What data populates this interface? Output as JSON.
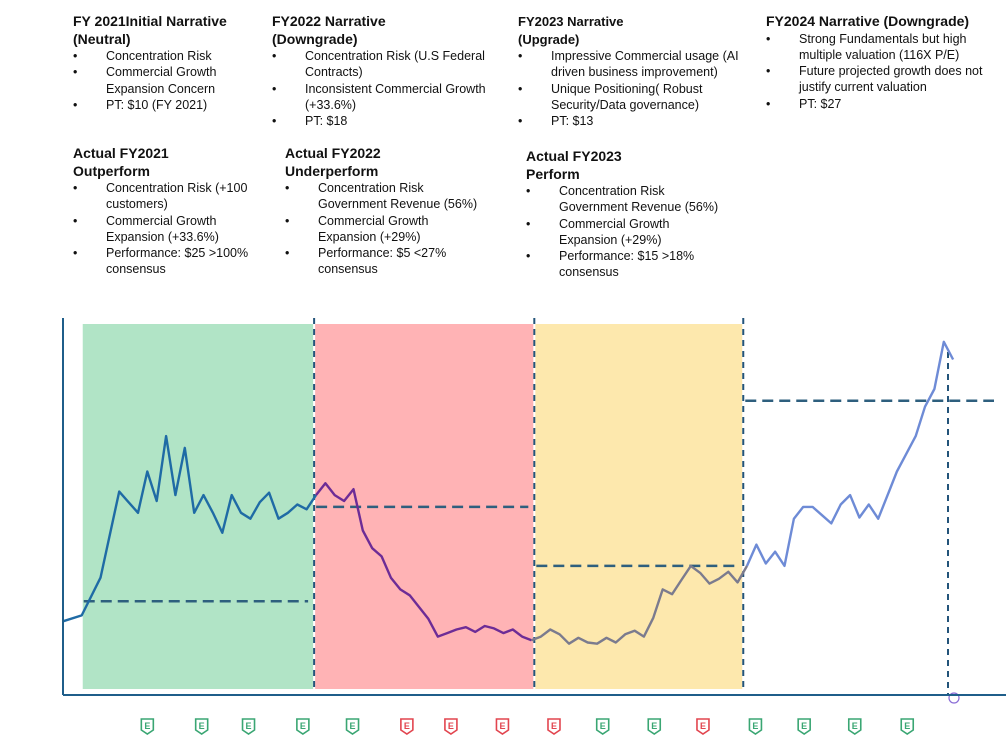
{
  "narratives": [
    {
      "heading": "FY 2021Initial Narrative (Neutral)",
      "bullets": [
        "Concentration Risk",
        "Commercial Growth Expansion Concern",
        "PT: $10 (FY 2021)"
      ]
    },
    {
      "heading": "FY2022 Narrative (Downgrade)",
      "bullets": [
        "Concentration Risk (U.S Federal Contracts)",
        "Inconsistent Commercial Growth (+33.6%)",
        "PT: $18"
      ]
    },
    {
      "heading": "FY2023 Narrative (Upgrade)",
      "bullets": [
        "Impressive Commercial usage (AI driven business improvement)",
        "Unique Positioning( Robust Security/Data governance)",
        "PT: $13"
      ]
    },
    {
      "heading": "FY2024 Narrative (Downgrade)",
      "bullets": [
        "Strong Fundamentals but high multiple valuation (116X P/E)",
        "Future projected growth does not justify current valuation",
        "PT: $27"
      ]
    }
  ],
  "actuals": [
    {
      "heading": "Actual FY2021 Outperform",
      "bullets": [
        "Concentration Risk (+100 customers)",
        "Commercial Growth Expansion (+33.6%)",
        "Performance: $25 >100% consensus"
      ]
    },
    {
      "heading": "Actual FY2022 Underperform",
      "bullets": [
        "Concentration Risk Government Revenue (56%)",
        "Commercial Growth Expansion (+29%)",
        "Performance: $5 <27% consensus"
      ]
    },
    {
      "heading": "Actual FY2023 Perform",
      "bullets": [
        "Concentration Risk Government Revenue (56%)",
        "Commercial Growth Expansion (+29%)",
        "Performance: $15 >18% consensus"
      ]
    }
  ],
  "chart_data": {
    "type": "line",
    "title": "",
    "xlabel": "",
    "ylabel": "",
    "ylim": [
      4,
      33
    ],
    "x_range": [
      0,
      100
    ],
    "grid": false,
    "legend": "none",
    "periods": [
      {
        "label": "FY2021",
        "rating": "Outperform",
        "x_start": 2,
        "x_end": 26.8,
        "color": "#b1e4c6"
      },
      {
        "label": "FY2022",
        "rating": "Underperform",
        "x_start": 26.8,
        "x_end": 50.3,
        "color": "#ffb3b5"
      },
      {
        "label": "FY2023",
        "rating": "Perform",
        "x_start": 50.3,
        "x_end": 72.6,
        "color": "#fde8ad"
      },
      {
        "label": "FY2024",
        "rating": "",
        "x_start": 72.6,
        "x_end": 100,
        "color": ""
      }
    ],
    "price_targets": [
      {
        "label": "PT FY2021",
        "value": 10,
        "x_start": 2,
        "x_end": 26.8
      },
      {
        "label": "PT FY2022",
        "value": 18,
        "x_start": 26.8,
        "x_end": 50.3
      },
      {
        "label": "PT FY2023",
        "value": 13,
        "x_start": 50.3,
        "x_end": 72.6
      },
      {
        "label": "PT FY2024",
        "value": 27,
        "x_start": 72.6,
        "x_end": 100
      }
    ],
    "series": [
      {
        "name": "",
        "color": "#1f6ba5",
        "x": [
          0,
          2,
          4,
          6,
          8,
          9,
          10,
          11,
          12,
          13,
          14,
          15,
          16,
          17,
          18,
          19,
          20,
          21,
          22,
          23,
          24,
          25,
          26,
          27
        ],
        "y": [
          8.3,
          8.8,
          12,
          19.3,
          17.5,
          21,
          18.5,
          24,
          19,
          23,
          17.5,
          19,
          17.5,
          15.8,
          19,
          17.5,
          17,
          18.4,
          19.2,
          17,
          17.5,
          18.2,
          17.8,
          19
        ]
      },
      {
        "name": "",
        "color": "#6d2c96",
        "x": [
          27,
          28,
          29,
          30,
          31,
          32,
          33,
          34,
          35,
          36,
          37,
          38,
          39,
          40,
          41,
          42,
          43,
          44,
          45,
          46,
          47,
          48,
          49,
          50
        ],
        "y": [
          19,
          20,
          19,
          18.5,
          19.5,
          16,
          14.5,
          13.8,
          12,
          11,
          10.5,
          9.5,
          8.5,
          7,
          7.3,
          7.6,
          7.8,
          7.4,
          7.9,
          7.7,
          7.3,
          7.6,
          7.0,
          6.7
        ]
      },
      {
        "name": "",
        "color": "#7b7b8e",
        "x": [
          50,
          51,
          52,
          53,
          54,
          55,
          56,
          57,
          58,
          59,
          60,
          61,
          62,
          63,
          64,
          65,
          66,
          67,
          68,
          69,
          70,
          71,
          72,
          73
        ],
        "y": [
          6.7,
          7,
          7.6,
          7.2,
          6.4,
          6.9,
          6.5,
          6.4,
          6.9,
          6.5,
          7.2,
          7.5,
          7.0,
          8.6,
          11,
          10.6,
          11.8,
          13,
          12.4,
          11.5,
          11.9,
          12.5,
          11.6,
          13
        ]
      },
      {
        "name": "",
        "color": "#6e8bd6",
        "x": [
          73,
          74,
          75,
          76,
          77,
          78,
          79,
          80,
          81,
          82,
          83,
          84,
          85,
          86,
          87,
          88,
          89,
          90,
          91,
          92,
          93,
          94,
          95
        ],
        "y": [
          13,
          14.8,
          13.2,
          14.2,
          13,
          17,
          18,
          18,
          17.3,
          16.6,
          18.2,
          19,
          17.1,
          18.2,
          17,
          19,
          21,
          22.5,
          24,
          26.5,
          28,
          32,
          30.5
        ]
      }
    ]
  },
  "earnings_markers": [
    {
      "x": 9,
      "label": "E",
      "color": "#3aa673"
    },
    {
      "x": 14.8,
      "label": "E",
      "color": "#3aa673"
    },
    {
      "x": 19.8,
      "label": "E",
      "color": "#3aa673"
    },
    {
      "x": 25.6,
      "label": "E",
      "color": "#3aa673"
    },
    {
      "x": 30.9,
      "label": "E",
      "color": "#3aa673"
    },
    {
      "x": 36.7,
      "label": "E",
      "color": "#e2454f"
    },
    {
      "x": 41.4,
      "label": "E",
      "color": "#e2454f"
    },
    {
      "x": 46.9,
      "label": "E",
      "color": "#e2454f"
    },
    {
      "x": 52.4,
      "label": "E",
      "color": "#e2454f"
    },
    {
      "x": 57.6,
      "label": "E",
      "color": "#3aa673"
    },
    {
      "x": 63.1,
      "label": "E",
      "color": "#3aa673"
    },
    {
      "x": 68.3,
      "label": "E",
      "color": "#e2454f"
    },
    {
      "x": 73.9,
      "label": "E",
      "color": "#3aa673"
    },
    {
      "x": 79.1,
      "label": "E",
      "color": "#3aa673"
    },
    {
      "x": 84.5,
      "label": "E",
      "color": "#3aa673"
    },
    {
      "x": 90.1,
      "label": "E",
      "color": "#3aa673"
    }
  ]
}
